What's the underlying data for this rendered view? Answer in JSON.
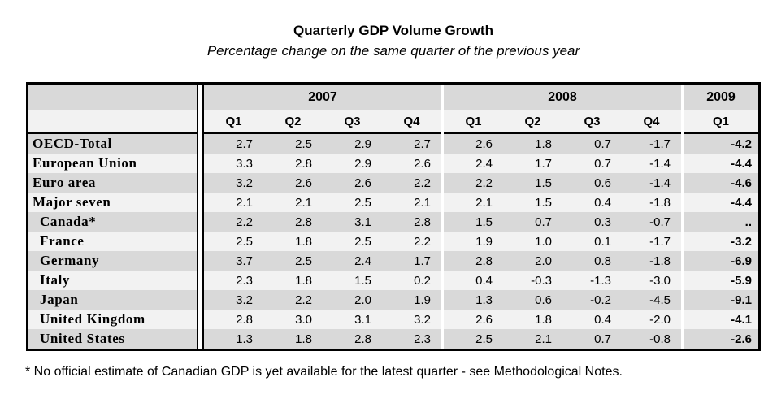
{
  "colors": {
    "border": "#000000",
    "header_year_bg": "#d9d9d9",
    "header_quarter_bg": "#f2f2f2",
    "row_dark_bg": "#d9d9d9",
    "row_light_bg": "#f2f2f2",
    "text": "#000000"
  },
  "chart_data": {
    "type": "table",
    "title": "Quarterly GDP Volume Growth",
    "subtitle": "Percentage change on the same quarter of the previous year",
    "footnote": "* No official estimate of Canadian GDP is yet available for the latest quarter - see Methodological Notes.",
    "missing_value_symbol": "..",
    "column_groups": [
      {
        "year": "2007",
        "quarters": [
          "Q1",
          "Q2",
          "Q3",
          "Q4"
        ]
      },
      {
        "year": "2008",
        "quarters": [
          "Q1",
          "Q2",
          "Q3",
          "Q4"
        ]
      },
      {
        "year": "2009",
        "quarters": [
          "Q1"
        ]
      }
    ],
    "rows": [
      {
        "label": "OECD-Total",
        "indent": false,
        "values": [
          "2.7",
          "2.5",
          "2.9",
          "2.7",
          "2.6",
          "1.8",
          "0.7",
          "-1.7",
          "-4.2"
        ]
      },
      {
        "label": "European Union",
        "indent": false,
        "values": [
          "3.3",
          "2.8",
          "2.9",
          "2.6",
          "2.4",
          "1.7",
          "0.7",
          "-1.4",
          "-4.4"
        ]
      },
      {
        "label": "Euro area",
        "indent": false,
        "values": [
          "3.2",
          "2.6",
          "2.6",
          "2.2",
          "2.2",
          "1.5",
          "0.6",
          "-1.4",
          "-4.6"
        ]
      },
      {
        "label": "Major seven",
        "indent": false,
        "values": [
          "2.1",
          "2.1",
          "2.5",
          "2.1",
          "2.1",
          "1.5",
          "0.4",
          "-1.8",
          "-4.4"
        ]
      },
      {
        "label": "Canada*",
        "indent": true,
        "values": [
          "2.2",
          "2.8",
          "3.1",
          "2.8",
          "1.5",
          "0.7",
          "0.3",
          "-0.7",
          ".."
        ]
      },
      {
        "label": "France",
        "indent": true,
        "values": [
          "2.5",
          "1.8",
          "2.5",
          "2.2",
          "1.9",
          "1.0",
          "0.1",
          "-1.7",
          "-3.2"
        ]
      },
      {
        "label": "Germany",
        "indent": true,
        "values": [
          "3.7",
          "2.5",
          "2.4",
          "1.7",
          "2.8",
          "2.0",
          "0.8",
          "-1.8",
          "-6.9"
        ]
      },
      {
        "label": "Italy",
        "indent": true,
        "values": [
          "2.3",
          "1.8",
          "1.5",
          "0.2",
          "0.4",
          "-0.3",
          "-1.3",
          "-3.0",
          "-5.9"
        ]
      },
      {
        "label": "Japan",
        "indent": true,
        "values": [
          "3.2",
          "2.2",
          "2.0",
          "1.9",
          "1.3",
          "0.6",
          "-0.2",
          "-4.5",
          "-9.1"
        ]
      },
      {
        "label": "United Kingdom",
        "indent": true,
        "values": [
          "2.8",
          "3.0",
          "3.1",
          "3.2",
          "2.6",
          "1.8",
          "0.4",
          "-2.0",
          "-4.1"
        ]
      },
      {
        "label": "United States",
        "indent": true,
        "values": [
          "1.3",
          "1.8",
          "2.8",
          "2.3",
          "2.5",
          "2.1",
          "0.7",
          "-0.8",
          "-2.6"
        ]
      }
    ]
  }
}
